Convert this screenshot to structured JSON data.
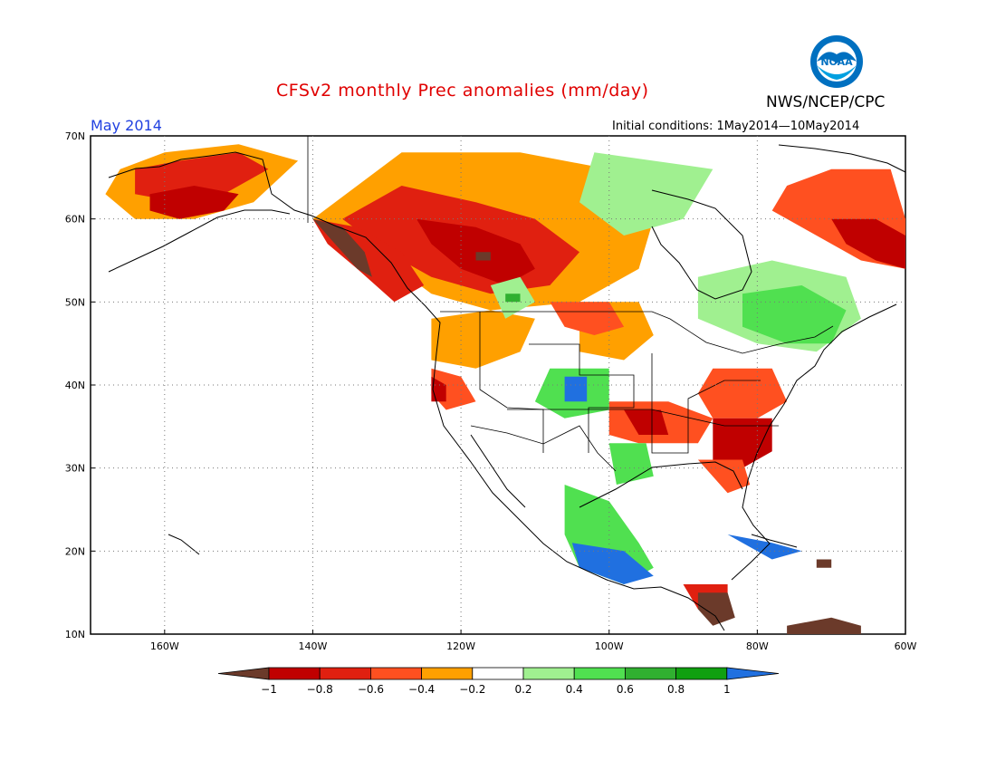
{
  "header": {
    "title": "CFSv2 monthly Prec anomalies (mm/day)",
    "agency": "NWS/NCEP/CPC",
    "period": "May 2014",
    "initial_conditions": "Initial conditions: 1May2014—10May2014",
    "logo_text": "NOAA"
  },
  "map": {
    "lat_range": [
      10,
      70
    ],
    "lon_range": [
      -170,
      -60
    ],
    "grid": "dotted",
    "lat_labels": [
      "70N",
      "60N",
      "50N",
      "40N",
      "30N",
      "20N",
      "10N"
    ],
    "lat_values": [
      70,
      60,
      50,
      40,
      30,
      20,
      10
    ],
    "lon_labels": [
      "160W",
      "140W",
      "120W",
      "100W",
      "80W",
      "60W"
    ],
    "lon_values": [
      -160,
      -140,
      -120,
      -100,
      -80,
      -60
    ]
  },
  "colorbar": {
    "tick_labels": [
      "−1",
      "−0.8",
      "−0.6",
      "−0.4",
      "−0.2",
      "0.2",
      "0.4",
      "0.6",
      "0.8",
      "1"
    ],
    "colors": {
      "below_min": "#6b3a2a",
      "neg_100_080": "#c00000",
      "neg_080_060": "#e02010",
      "neg_060_040": "#ff5020",
      "neg_040_020": "#ffa000",
      "neutral": "#ffffff",
      "pos_020_040": "#a0f090",
      "pos_040_060": "#50e050",
      "pos_060_080": "#30b030",
      "pos_080_100": "#10a010",
      "above_max": "#2070e0"
    }
  },
  "anomaly_regions": [
    {
      "level": "neg_040_020",
      "points": [
        [
          -166,
          66
        ],
        [
          -160,
          68
        ],
        [
          -150,
          69
        ],
        [
          -142,
          67
        ],
        [
          -148,
          62
        ],
        [
          -156,
          60
        ],
        [
          -164,
          60
        ],
        [
          -168,
          63
        ]
      ]
    },
    {
      "level": "neg_080_060",
      "points": [
        [
          -164,
          66
        ],
        [
          -158,
          67
        ],
        [
          -150,
          68
        ],
        [
          -146,
          66
        ],
        [
          -152,
          63
        ],
        [
          -158,
          62
        ],
        [
          -164,
          63
        ]
      ]
    },
    {
      "level": "neg_100_080",
      "points": [
        [
          -162,
          63
        ],
        [
          -156,
          64
        ],
        [
          -150,
          63
        ],
        [
          -152,
          61
        ],
        [
          -158,
          60
        ],
        [
          -162,
          61
        ]
      ]
    },
    {
      "level": "neg_040_020",
      "points": [
        [
          -140,
          60
        ],
        [
          -128,
          68
        ],
        [
          -112,
          68
        ],
        [
          -100,
          66
        ],
        [
          -94,
          60
        ],
        [
          -96,
          54
        ],
        [
          -104,
          50
        ],
        [
          -116,
          49
        ],
        [
          -124,
          51
        ],
        [
          -130,
          55
        ],
        [
          -136,
          58
        ]
      ]
    },
    {
      "level": "neg_080_060",
      "points": [
        [
          -136,
          60
        ],
        [
          -128,
          64
        ],
        [
          -118,
          62
        ],
        [
          -110,
          60
        ],
        [
          -104,
          56
        ],
        [
          -108,
          52
        ],
        [
          -116,
          51
        ],
        [
          -124,
          53
        ],
        [
          -130,
          56
        ]
      ]
    },
    {
      "level": "neg_100_080",
      "points": [
        [
          -126,
          60
        ],
        [
          -118,
          59
        ],
        [
          -112,
          57
        ],
        [
          -110,
          54
        ],
        [
          -114,
          52
        ],
        [
          -120,
          54
        ],
        [
          -124,
          57
        ]
      ]
    },
    {
      "level": "below_min",
      "points": [
        [
          -118,
          56
        ],
        [
          -116,
          56
        ],
        [
          -116,
          55
        ],
        [
          -118,
          55
        ]
      ]
    },
    {
      "level": "neg_080_060",
      "points": [
        [
          -140,
          60
        ],
        [
          -134,
          59
        ],
        [
          -128,
          56
        ],
        [
          -125,
          52
        ],
        [
          -129,
          50
        ],
        [
          -134,
          54
        ],
        [
          -138,
          57
        ]
      ]
    },
    {
      "level": "below_min",
      "points": [
        [
          -140,
          60
        ],
        [
          -136,
          59
        ],
        [
          -133,
          56
        ],
        [
          -132,
          53
        ],
        [
          -134,
          54
        ],
        [
          -137,
          57
        ]
      ]
    },
    {
      "level": "neg_040_020",
      "points": [
        [
          -104,
          50
        ],
        [
          -96,
          50
        ],
        [
          -94,
          46
        ],
        [
          -98,
          43
        ],
        [
          -104,
          44
        ]
      ]
    },
    {
      "level": "neg_060_040",
      "points": [
        [
          -108,
          50
        ],
        [
          -100,
          50
        ],
        [
          -98,
          47
        ],
        [
          -102,
          46
        ],
        [
          -106,
          47
        ]
      ]
    },
    {
      "level": "neg_040_020",
      "points": [
        [
          -124,
          48
        ],
        [
          -116,
          49
        ],
        [
          -110,
          48
        ],
        [
          -112,
          44
        ],
        [
          -118,
          42
        ],
        [
          -124,
          43
        ]
      ]
    },
    {
      "level": "neg_060_040",
      "points": [
        [
          -124,
          42
        ],
        [
          -120,
          41
        ],
        [
          -118,
          38
        ],
        [
          -122,
          37
        ],
        [
          -124,
          39
        ]
      ]
    },
    {
      "level": "neg_100_080",
      "points": [
        [
          -124,
          41
        ],
        [
          -122,
          40
        ],
        [
          -122,
          38
        ],
        [
          -124,
          38
        ]
      ]
    },
    {
      "level": "neg_060_040",
      "points": [
        [
          -100,
          38
        ],
        [
          -92,
          38
        ],
        [
          -86,
          36
        ],
        [
          -88,
          33
        ],
        [
          -96,
          33
        ],
        [
          -100,
          34
        ]
      ]
    },
    {
      "level": "neg_100_080",
      "points": [
        [
          -98,
          37
        ],
        [
          -93,
          37
        ],
        [
          -92,
          34
        ],
        [
          -96,
          34
        ]
      ]
    },
    {
      "level": "neg_060_040",
      "points": [
        [
          -86,
          42
        ],
        [
          -78,
          42
        ],
        [
          -76,
          38
        ],
        [
          -80,
          36
        ],
        [
          -86,
          36
        ],
        [
          -88,
          39
        ]
      ]
    },
    {
      "level": "neg_100_080",
      "points": [
        [
          -86,
          36
        ],
        [
          -78,
          36
        ],
        [
          -78,
          32
        ],
        [
          -82,
          30
        ],
        [
          -86,
          31
        ]
      ]
    },
    {
      "level": "neg_060_040",
      "points": [
        [
          -88,
          31
        ],
        [
          -82,
          31
        ],
        [
          -81,
          28
        ],
        [
          -84,
          27
        ]
      ]
    },
    {
      "level": "pos_020_040",
      "points": [
        [
          -116,
          52
        ],
        [
          -112,
          53
        ],
        [
          -110,
          50
        ],
        [
          -114,
          48
        ]
      ]
    },
    {
      "level": "pos_060_080",
      "points": [
        [
          -114,
          51
        ],
        [
          -112,
          51
        ],
        [
          -112,
          50
        ],
        [
          -114,
          50
        ]
      ]
    },
    {
      "level": "pos_040_060",
      "points": [
        [
          -108,
          42
        ],
        [
          -100,
          42
        ],
        [
          -100,
          37
        ],
        [
          -106,
          36
        ],
        [
          -110,
          38
        ]
      ]
    },
    {
      "level": "above_max",
      "points": [
        [
          -106,
          41
        ],
        [
          -103,
          41
        ],
        [
          -103,
          38
        ],
        [
          -106,
          38
        ]
      ]
    },
    {
      "level": "pos_040_060",
      "points": [
        [
          -100,
          33
        ],
        [
          -95,
          33
        ],
        [
          -94,
          29
        ],
        [
          -99,
          28
        ]
      ]
    },
    {
      "level": "pos_020_040",
      "points": [
        [
          -88,
          53
        ],
        [
          -78,
          55
        ],
        [
          -68,
          53
        ],
        [
          -66,
          48
        ],
        [
          -72,
          44
        ],
        [
          -80,
          45
        ],
        [
          -88,
          48
        ]
      ]
    },
    {
      "level": "pos_040_060",
      "points": [
        [
          -82,
          51
        ],
        [
          -74,
          52
        ],
        [
          -68,
          49
        ],
        [
          -70,
          45
        ],
        [
          -76,
          45
        ],
        [
          -82,
          47
        ]
      ]
    },
    {
      "level": "pos_020_040",
      "points": [
        [
          -102,
          68
        ],
        [
          -94,
          67
        ],
        [
          -86,
          66
        ],
        [
          -90,
          60
        ],
        [
          -98,
          58
        ],
        [
          -104,
          62
        ]
      ]
    },
    {
      "level": "pos_040_060",
      "points": [
        [
          -106,
          28
        ],
        [
          -100,
          26
        ],
        [
          -96,
          21
        ],
        [
          -94,
          18
        ],
        [
          -98,
          16
        ],
        [
          -104,
          18
        ],
        [
          -106,
          22
        ]
      ]
    },
    {
      "level": "above_max",
      "points": [
        [
          -105,
          21
        ],
        [
          -98,
          20
        ],
        [
          -94,
          17
        ],
        [
          -98,
          16
        ],
        [
          -104,
          18
        ]
      ]
    },
    {
      "level": "neg_080_060",
      "points": [
        [
          -90,
          16
        ],
        [
          -84,
          16
        ],
        [
          -84,
          12
        ],
        [
          -88,
          13
        ]
      ]
    },
    {
      "level": "below_min",
      "points": [
        [
          -88,
          15
        ],
        [
          -84,
          15
        ],
        [
          -83,
          12
        ],
        [
          -86,
          11
        ],
        [
          -88,
          13
        ]
      ]
    },
    {
      "level": "above_max",
      "points": [
        [
          -84,
          22
        ],
        [
          -78,
          21
        ],
        [
          -74,
          20
        ],
        [
          -78,
          19
        ],
        [
          -82,
          21
        ]
      ]
    },
    {
      "level": "neg_060_040",
      "points": [
        [
          -76,
          64
        ],
        [
          -70,
          66
        ],
        [
          -62,
          66
        ],
        [
          -60,
          60
        ],
        [
          -60,
          54
        ],
        [
          -66,
          55
        ],
        [
          -72,
          58
        ],
        [
          -78,
          61
        ]
      ]
    },
    {
      "level": "neg_100_080",
      "points": [
        [
          -70,
          60
        ],
        [
          -64,
          60
        ],
        [
          -60,
          58
        ],
        [
          -60,
          54
        ],
        [
          -64,
          55
        ],
        [
          -68,
          57
        ]
      ]
    },
    {
      "level": "below_min",
      "points": [
        [
          -72,
          19
        ],
        [
          -70,
          19
        ],
        [
          -70,
          18
        ],
        [
          -72,
          18
        ]
      ]
    },
    {
      "level": "below_min",
      "points": [
        [
          -76,
          11
        ],
        [
          -70,
          12
        ],
        [
          -66,
          11
        ],
        [
          -66,
          10
        ],
        [
          -76,
          10
        ]
      ]
    }
  ]
}
